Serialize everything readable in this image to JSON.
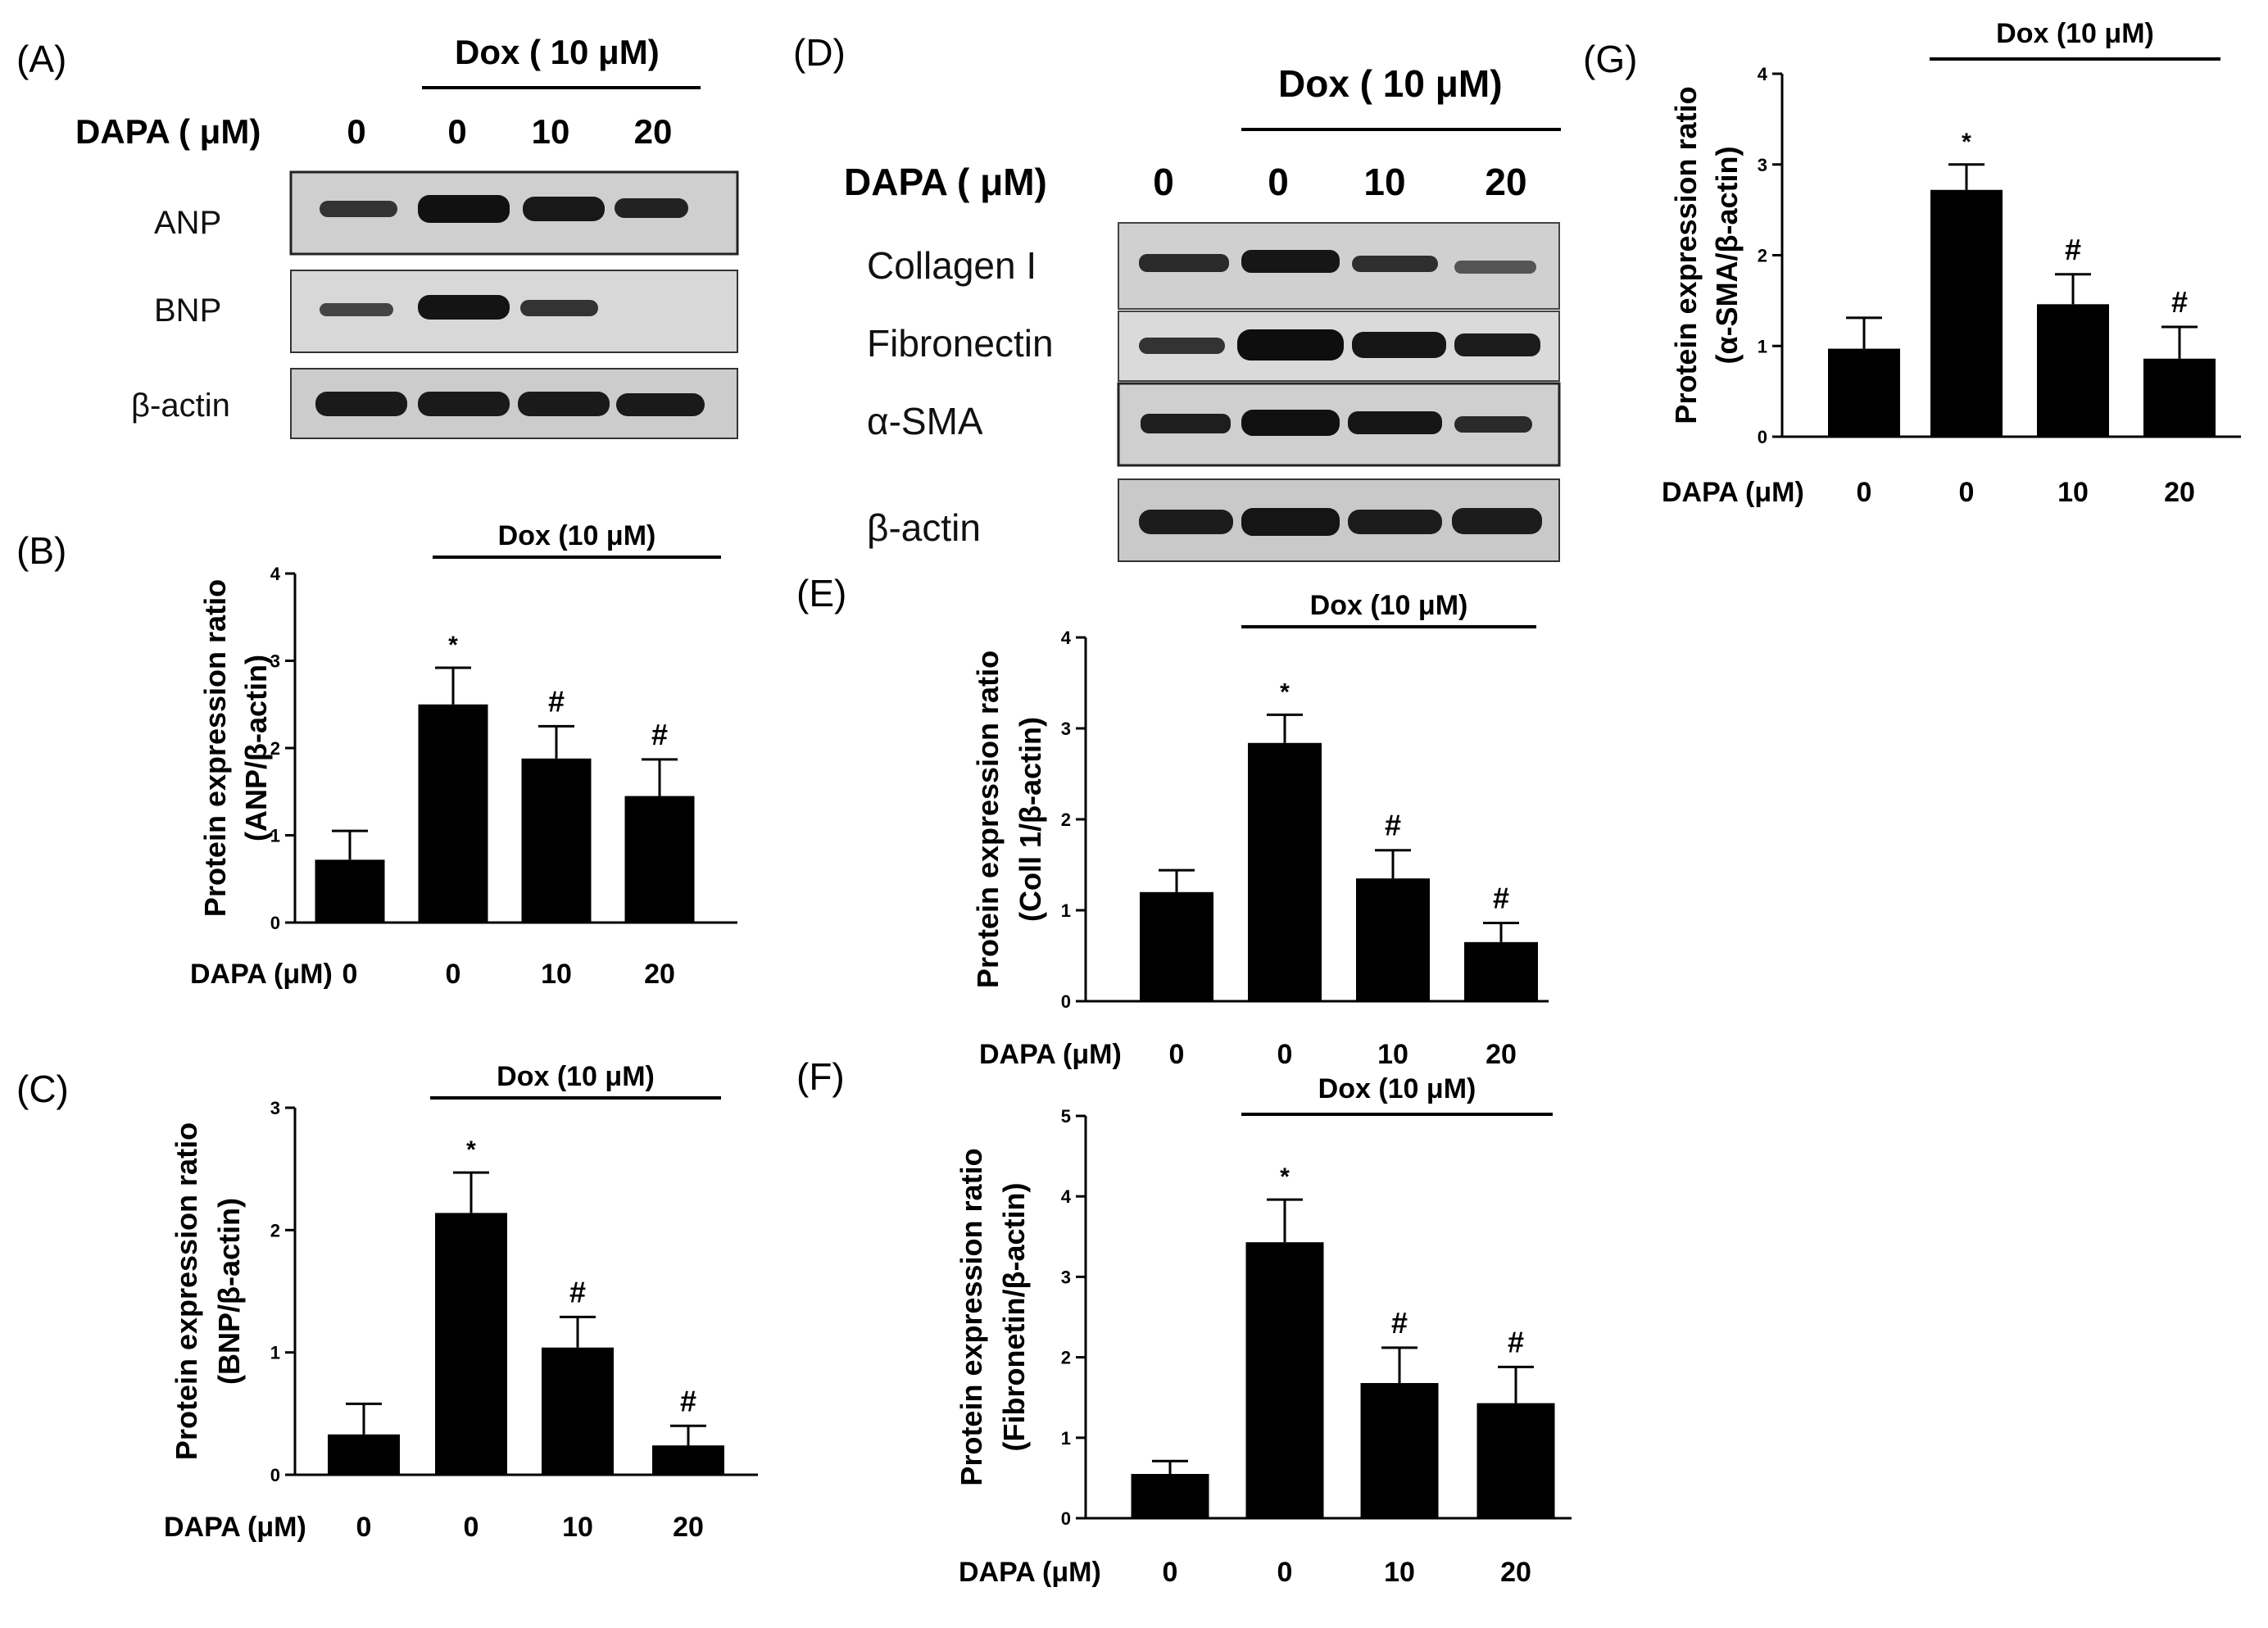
{
  "panel_labels": {
    "A": "(A)",
    "B": "(B)",
    "C": "(C)",
    "D": "(D)",
    "E": "(E)",
    "F": "(F)",
    "G": "(G)"
  },
  "western_blots": [
    {
      "panel": "A",
      "treatment_label": "Dox ( 10 μM)",
      "dapa_label": "DAPA ( μM)",
      "lanes": [
        "0",
        "0",
        "10",
        "20"
      ],
      "bands": [
        "ANP",
        "BNP",
        "β-actin"
      ]
    },
    {
      "panel": "D",
      "treatment_label": "Dox ( 10 μM)",
      "dapa_label": "DAPA ( μM)",
      "lanes": [
        "0",
        "0",
        "10",
        "20"
      ],
      "bands": [
        "Collagen I",
        "Fibronectin",
        "α-SMA",
        "β-actin"
      ]
    }
  ],
  "chart_data": [
    {
      "panel": "B",
      "type": "bar",
      "categories": [
        "0",
        "0",
        "10",
        "20"
      ],
      "values": [
        0.72,
        2.5,
        1.88,
        1.45
      ],
      "errors": [
        0.33,
        0.42,
        0.37,
        0.42
      ],
      "annotations": [
        "",
        "*",
        "#",
        "#"
      ],
      "ylim": [
        0,
        4
      ],
      "yticks": [
        "0",
        "1",
        "2",
        "3",
        "4"
      ],
      "ylabel_line1": "Protein expression ratio",
      "ylabel_line2": "(ANP/β-actin)",
      "xprefix": "DAPA (μM)",
      "bracket_label": "Dox (10 μM)"
    },
    {
      "panel": "C",
      "type": "bar",
      "categories": [
        "0",
        "0",
        "10",
        "20"
      ],
      "values": [
        0.33,
        2.14,
        1.04,
        0.24
      ],
      "errors": [
        0.25,
        0.33,
        0.25,
        0.16
      ],
      "annotations": [
        "",
        "*",
        "#",
        "#"
      ],
      "ylim": [
        0,
        3
      ],
      "yticks": [
        "0",
        "1",
        "2",
        "3"
      ],
      "ylabel_line1": "Protein expression ratio",
      "ylabel_line2": "(BNP/β-actin)",
      "xprefix": "DAPA (μM)",
      "bracket_label": "Dox (10 μM)"
    },
    {
      "panel": "E",
      "type": "bar",
      "categories": [
        "0",
        "0",
        "10",
        "20"
      ],
      "values": [
        1.2,
        2.84,
        1.35,
        0.65
      ],
      "errors": [
        0.24,
        0.31,
        0.31,
        0.21
      ],
      "annotations": [
        "",
        "*",
        "#",
        "#"
      ],
      "ylim": [
        0,
        4
      ],
      "yticks": [
        "0",
        "1",
        "2",
        "3",
        "4"
      ],
      "ylabel_line1": "Protein expression ratio",
      "ylabel_line2": "(Coll 1/β-actin)",
      "xprefix": "DAPA (μM)",
      "bracket_label": "Dox (10 μM)"
    },
    {
      "panel": "F",
      "type": "bar",
      "categories": [
        "0",
        "0",
        "10",
        "20"
      ],
      "values": [
        0.55,
        3.43,
        1.68,
        1.43
      ],
      "errors": [
        0.16,
        0.53,
        0.44,
        0.45
      ],
      "annotations": [
        "",
        "*",
        "#",
        "#"
      ],
      "ylim": [
        0,
        5
      ],
      "yticks": [
        "0",
        "1",
        "2",
        "3",
        "4",
        "5"
      ],
      "ylabel_line1": "Protein expression ratio",
      "ylabel_line2": "(Fibronetin/β-actin)",
      "xprefix": "DAPA (μM)",
      "bracket_label": "Dox (10 μM)"
    },
    {
      "panel": "G",
      "type": "bar",
      "categories": [
        "0",
        "0",
        "10",
        "20"
      ],
      "values": [
        0.97,
        2.72,
        1.46,
        0.86
      ],
      "errors": [
        0.34,
        0.28,
        0.33,
        0.35
      ],
      "annotations": [
        "",
        "*",
        "#",
        "#"
      ],
      "ylim": [
        0,
        4
      ],
      "yticks": [
        "0",
        "1",
        "2",
        "3",
        "4"
      ],
      "ylabel_line1": "Protein expression ratio",
      "ylabel_line2": "(α-SMA/β-actin)",
      "xprefix": "DAPA (μM)",
      "bracket_label": "Dox (10 μM)"
    }
  ],
  "colors": {
    "bar": "#000000",
    "axis": "#000000",
    "blot_bg": "#d6d6d6",
    "band": "#1a1a1a"
  }
}
